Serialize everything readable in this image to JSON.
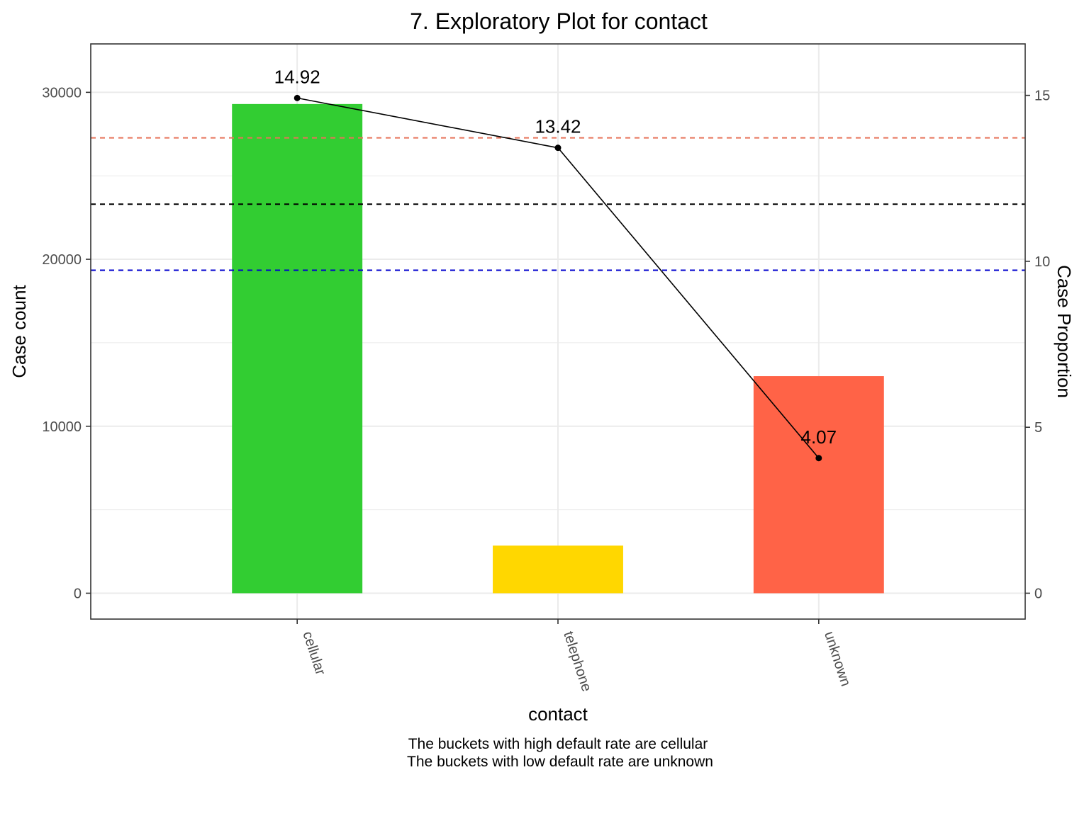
{
  "chart_data": {
    "type": "bar",
    "title": "7. Exploratory Plot for contact",
    "xlabel": "contact",
    "ylabel": "Case count",
    "ylabel_right": "Case Proportion",
    "categories": [
      "cellular",
      "telephone",
      "unknown"
    ],
    "bar_colors": [
      "#32CD32",
      "#FFD700",
      "#FF6347"
    ],
    "values": [
      29300,
      2850,
      13000
    ],
    "ylim": [
      -1550,
      32900
    ],
    "yticks": [
      0,
      10000,
      20000,
      30000
    ],
    "ytick_labels": [
      "0",
      "10000",
      "20000",
      "30000"
    ],
    "y2lim": [
      -0.78,
      16.55
    ],
    "y2ticks": [
      0,
      5,
      10,
      15
    ],
    "y2tick_labels": [
      "0",
      "5",
      "10",
      "15"
    ],
    "line_series": {
      "values": [
        14.92,
        13.42,
        4.07
      ],
      "labels": [
        "14.92",
        "13.42",
        "4.07"
      ],
      "color": "#000000"
    },
    "reference_lines": [
      {
        "y2": 13.72,
        "color": "#E8735A",
        "style": "dashed"
      },
      {
        "y2": 11.72,
        "color": "#000000",
        "style": "dashed"
      },
      {
        "y2": 9.73,
        "color": "#0000CD",
        "style": "dashed"
      }
    ],
    "grid": true,
    "caption_lines": [
      "The buckets with high default rate are cellular",
      "The buckets with low default rate are unknown"
    ]
  }
}
